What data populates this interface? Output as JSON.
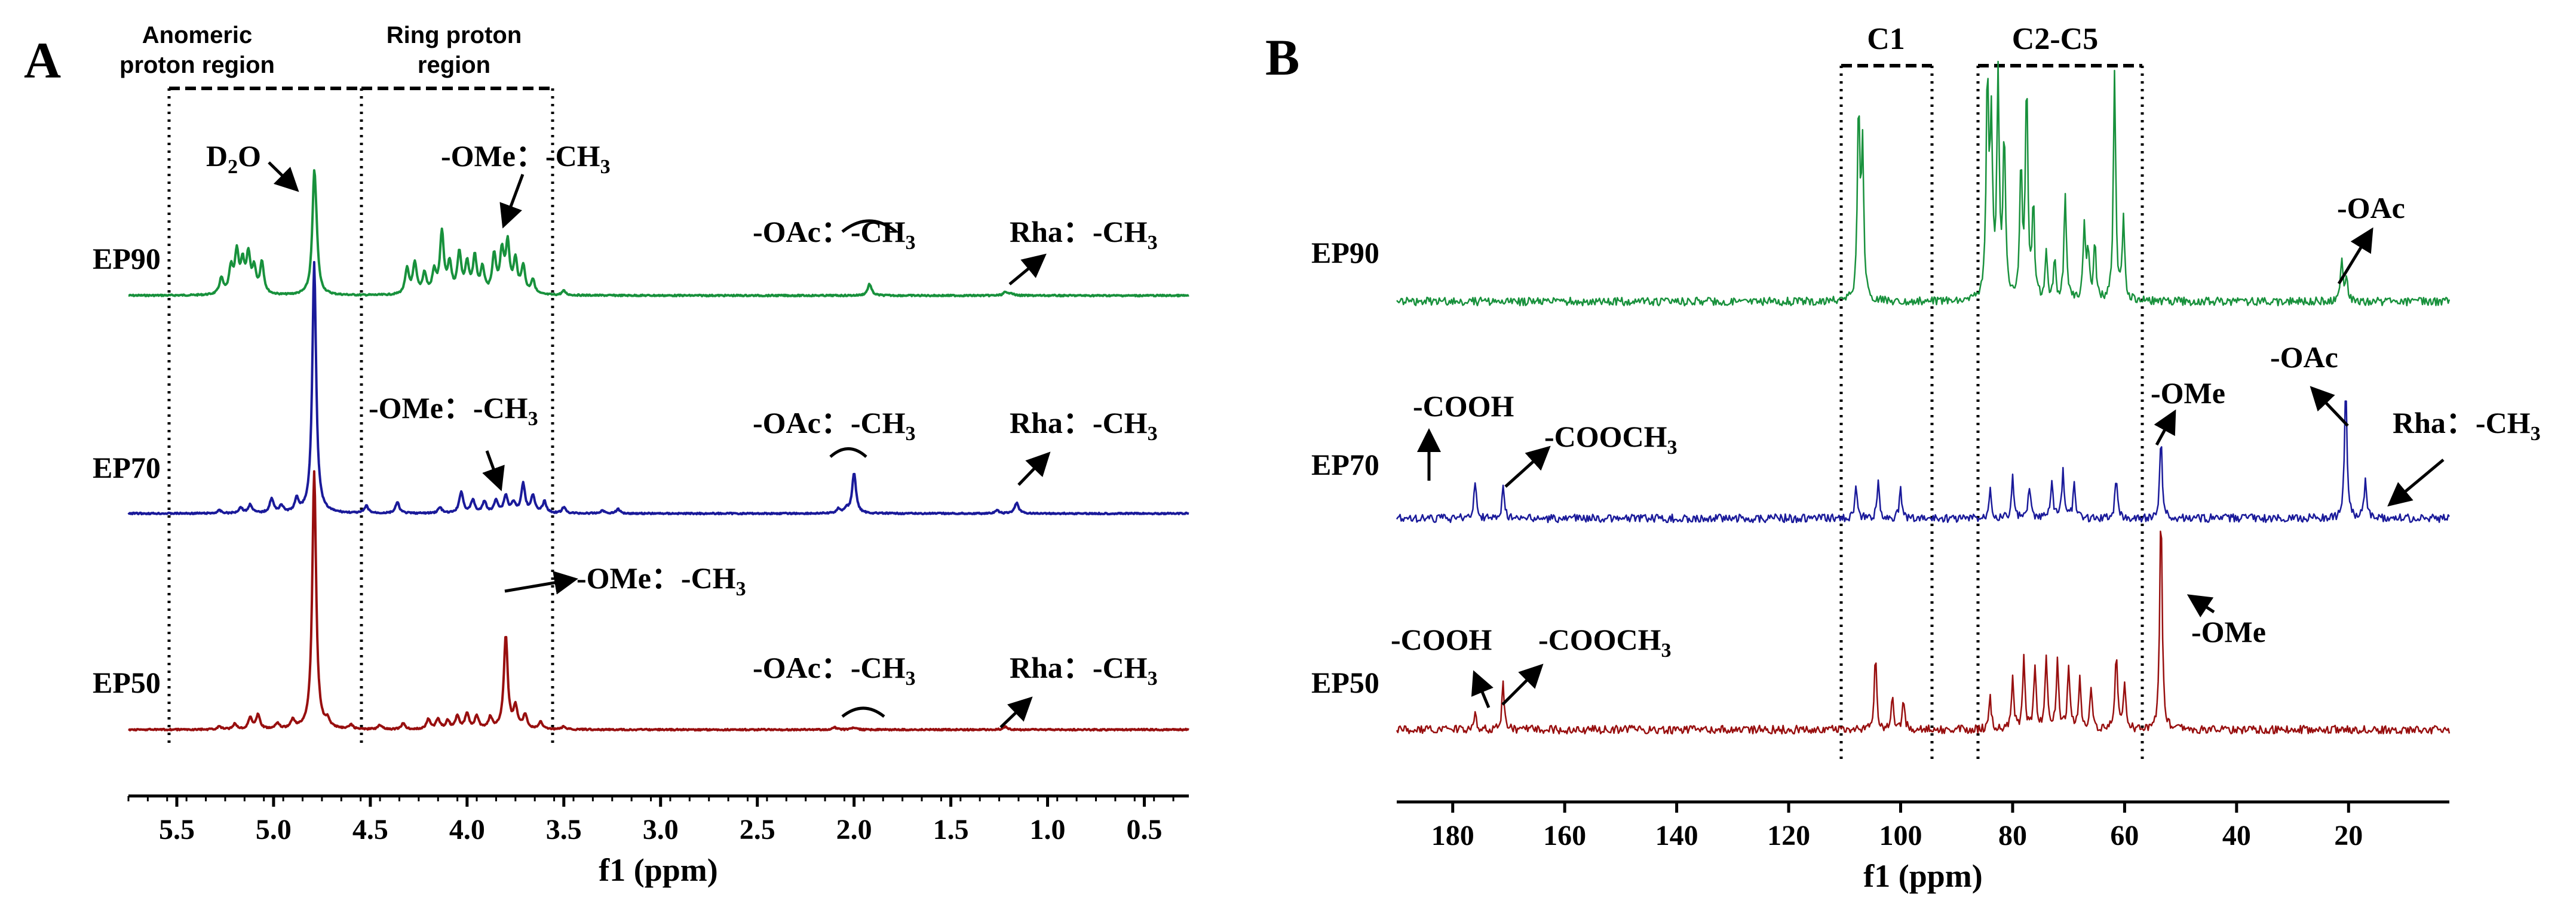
{
  "colors": {
    "EP90": "#18913c",
    "EP70": "#1a1a9a",
    "EP50": "#980f0f"
  },
  "chart_data": [
    {
      "panel": "A",
      "type": "line",
      "xlabel": "f1 (ppm)",
      "xlim": [
        5.75,
        0.27
      ],
      "tick_values": [
        5.5,
        5.0,
        4.5,
        4.0,
        3.5,
        3.0,
        2.5,
        2.0,
        1.5,
        1.0,
        0.5
      ],
      "tick_labels": [
        "5.5",
        "5.0",
        "4.5",
        "4.0",
        "3.5",
        "3.0",
        "2.5",
        "2.0",
        "1.5",
        "1.0",
        "0.5"
      ],
      "regions": [
        {
          "text": [
            "Anomeric",
            "proton region"
          ],
          "from": 5.5,
          "to": 4.5
        },
        {
          "text": [
            "Ring proton",
            "region"
          ],
          "from": 4.5,
          "to": 3.55
        }
      ],
      "series": [
        {
          "name": "EP90",
          "color_key": "EP90",
          "labels": [
            {
              "text": "D2O",
              "sub": "2",
              "peak": 4.79
            },
            {
              "text": "-OMe：-CH3",
              "sub": "3",
              "peak": 3.8
            },
            {
              "text": "-OAc：-CH3",
              "sub": "3",
              "peak": 1.92
            },
            {
              "text": "Rha：-CH3",
              "sub": "3",
              "peak": 1.22
            }
          ],
          "peaks": [
            [
              4.79,
              1.5
            ],
            [
              5.27,
              0.22
            ],
            [
              5.22,
              0.35
            ],
            [
              5.19,
              0.56
            ],
            [
              5.16,
              0.4
            ],
            [
              5.13,
              0.52
            ],
            [
              5.1,
              0.33
            ],
            [
              5.06,
              0.44
            ],
            [
              4.78,
              0.4
            ],
            [
              4.31,
              0.35
            ],
            [
              4.27,
              0.42
            ],
            [
              4.22,
              0.28
            ],
            [
              4.17,
              0.3
            ],
            [
              4.13,
              0.84
            ],
            [
              4.09,
              0.4
            ],
            [
              4.04,
              0.56
            ],
            [
              4.0,
              0.4
            ],
            [
              3.96,
              0.5
            ],
            [
              3.92,
              0.34
            ],
            [
              3.86,
              0.52
            ],
            [
              3.82,
              0.56
            ],
            [
              3.79,
              0.68
            ],
            [
              3.75,
              0.45
            ],
            [
              3.71,
              0.38
            ],
            [
              3.66,
              0.2
            ],
            [
              3.5,
              0.06
            ],
            [
              1.92,
              0.16
            ],
            [
              1.22,
              0.04
            ],
            [
              1.19,
              0.04
            ]
          ]
        },
        {
          "name": "EP70",
          "color_key": "EP70",
          "labels": [
            {
              "text": "-OMe：-CH3",
              "sub": "3",
              "peak": 3.8
            },
            {
              "text": "-OAc：-CH3",
              "sub": "3",
              "peak": 2.0
            },
            {
              "text": "Rha：-CH3",
              "sub": "3",
              "peak": 1.15
            }
          ],
          "peaks": [
            [
              4.79,
              3.5
            ],
            [
              5.28,
              0.04
            ],
            [
              5.17,
              0.08
            ],
            [
              5.12,
              0.12
            ],
            [
              5.01,
              0.2
            ],
            [
              4.96,
              0.1
            ],
            [
              4.88,
              0.18
            ],
            [
              4.52,
              0.1
            ],
            [
              4.36,
              0.15
            ],
            [
              4.14,
              0.08
            ],
            [
              4.03,
              0.3
            ],
            [
              3.97,
              0.18
            ],
            [
              3.91,
              0.16
            ],
            [
              3.85,
              0.18
            ],
            [
              3.8,
              0.24
            ],
            [
              3.76,
              0.14
            ],
            [
              3.71,
              0.4
            ],
            [
              3.66,
              0.24
            ],
            [
              3.6,
              0.16
            ],
            [
              3.5,
              0.08
            ],
            [
              3.3,
              0.04
            ],
            [
              3.22,
              0.06
            ],
            [
              2.08,
              0.06
            ],
            [
              2.04,
              0.06
            ],
            [
              2.0,
              0.56
            ],
            [
              1.16,
              0.15
            ],
            [
              1.26,
              0.04
            ]
          ]
        },
        {
          "name": "EP50",
          "color_key": "EP50",
          "labels": [
            {
              "text": "-OMe：-CH3",
              "sub": "3",
              "peak": 3.8
            },
            {
              "text": "-OAc：-CH3",
              "sub": "3",
              "peak": 2.0
            },
            {
              "text": "Rha：-CH3",
              "sub": "3",
              "peak": 1.22
            }
          ],
          "peaks": [
            [
              4.79,
              3.6
            ],
            [
              5.28,
              0.04
            ],
            [
              5.2,
              0.08
            ],
            [
              5.12,
              0.16
            ],
            [
              5.08,
              0.2
            ],
            [
              4.98,
              0.08
            ],
            [
              4.9,
              0.12
            ],
            [
              4.72,
              0.1
            ],
            [
              4.6,
              0.06
            ],
            [
              4.45,
              0.06
            ],
            [
              4.33,
              0.08
            ],
            [
              4.2,
              0.14
            ],
            [
              4.15,
              0.14
            ],
            [
              4.1,
              0.12
            ],
            [
              4.05,
              0.18
            ],
            [
              4.0,
              0.22
            ],
            [
              3.95,
              0.18
            ],
            [
              3.88,
              0.16
            ],
            [
              3.8,
              1.3
            ],
            [
              3.75,
              0.3
            ],
            [
              3.7,
              0.2
            ],
            [
              3.62,
              0.1
            ],
            [
              3.5,
              0.04
            ],
            [
              2.1,
              0.03
            ],
            [
              2.0,
              0.03
            ],
            [
              1.22,
              0.04
            ]
          ]
        }
      ]
    },
    {
      "panel": "B",
      "type": "line",
      "xlabel": "f1 (ppm)",
      "xlim": [
        190,
        2
      ],
      "tick_values": [
        180,
        160,
        140,
        120,
        100,
        80,
        60,
        40,
        20
      ],
      "tick_labels": [
        "180",
        "160",
        "140",
        "120",
        "100",
        "80",
        "60",
        "40",
        "20"
      ],
      "regions": [
        {
          "text": [
            "C1"
          ],
          "from": 110,
          "to": 94
        },
        {
          "text": [
            "C2-C5"
          ],
          "from": 86,
          "to": 57
        }
      ],
      "series": [
        {
          "name": "EP90",
          "color_key": "EP90",
          "labels": [
            {
              "text": "-OAc",
              "peak": 21
            }
          ],
          "peaks": [
            [
              107.5,
              1.25
            ],
            [
              106.8,
              0.95
            ],
            [
              84.5,
              1.45
            ],
            [
              83.8,
              1.1
            ],
            [
              82.6,
              1.4
            ],
            [
              81.5,
              1.05
            ],
            [
              78.5,
              0.85
            ],
            [
              77.5,
              1.4
            ],
            [
              76.3,
              0.6
            ],
            [
              70.6,
              0.7
            ],
            [
              67.2,
              0.45
            ],
            [
              66.5,
              0.3
            ],
            [
              65.3,
              0.35
            ],
            [
              61.8,
              1.45
            ],
            [
              60.2,
              0.55
            ],
            [
              74.0,
              0.3
            ],
            [
              72.5,
              0.25
            ],
            [
              21.2,
              0.28
            ],
            [
              20.4,
              0.15
            ]
          ]
        },
        {
          "name": "EP70",
          "color_key": "EP70",
          "labels": [
            {
              "text": "-COOH",
              "peak": 176
            },
            {
              "text": "-COOCH3",
              "sub": "3",
              "peak": 171
            },
            {
              "text": "-OMe",
              "peak": 53.5
            },
            {
              "text": "-OAc",
              "peak": 20.5
            },
            {
              "text": "Rha：-CH3",
              "sub": "3",
              "peak": 17
            }
          ],
          "peaks": [
            [
              176,
              0.25
            ],
            [
              171,
              0.2
            ],
            [
              108,
              0.2
            ],
            [
              104,
              0.22
            ],
            [
              100,
              0.18
            ],
            [
              84,
              0.22
            ],
            [
              80,
              0.26
            ],
            [
              77,
              0.2
            ],
            [
              73,
              0.24
            ],
            [
              71,
              0.3
            ],
            [
              69,
              0.22
            ],
            [
              61.5,
              0.28
            ],
            [
              53.5,
              0.55
            ],
            [
              20.5,
              0.9
            ],
            [
              17,
              0.25
            ]
          ]
        },
        {
          "name": "EP50",
          "color_key": "EP50",
          "labels": [
            {
              "text": "-COOH",
              "peak": 176
            },
            {
              "text": "-COOCH3",
              "sub": "3",
              "peak": 171
            },
            {
              "text": "-OMe",
              "peak": 53.5
            }
          ],
          "peaks": [
            [
              176,
              0.1
            ],
            [
              171,
              0.3
            ],
            [
              104.5,
              0.5
            ],
            [
              101.5,
              0.22
            ],
            [
              99.5,
              0.2
            ],
            [
              84,
              0.2
            ],
            [
              80,
              0.35
            ],
            [
              78,
              0.45
            ],
            [
              76,
              0.42
            ],
            [
              74,
              0.48
            ],
            [
              72,
              0.44
            ],
            [
              70,
              0.4
            ],
            [
              68,
              0.32
            ],
            [
              66,
              0.25
            ],
            [
              61.5,
              0.5
            ],
            [
              60,
              0.3
            ],
            [
              53.5,
              1.45
            ]
          ]
        }
      ]
    }
  ],
  "panelA": {
    "letter": "A",
    "regions": [
      {
        "line1": "Anomeric",
        "line2": "proton region"
      },
      {
        "line1": "Ring proton",
        "line2": "region"
      }
    ],
    "samples": [
      "EP90",
      "EP70",
      "EP50"
    ],
    "d2o": {
      "base": "D",
      "sub": "2",
      "tail": "O"
    },
    "ome": {
      "base": "-OMe：-CH",
      "sub": "3"
    },
    "oac": {
      "base": "-OAc：-CH",
      "sub": "3"
    },
    "rha": {
      "base": "Rha：-CH",
      "sub": "3"
    },
    "xlabel": "f1 (ppm)"
  },
  "panelB": {
    "letter": "B",
    "regions": [
      "C1",
      "C2-C5"
    ],
    "samples": [
      "EP90",
      "EP70",
      "EP50"
    ],
    "oac": "-OAc",
    "cooh": "-COOH",
    "cooch3": {
      "base": "-COOCH",
      "sub": "3"
    },
    "ome": "-OMe",
    "rha": {
      "base": "Rha：-CH",
      "sub": "3"
    },
    "xlabel": "f1 (ppm)"
  }
}
